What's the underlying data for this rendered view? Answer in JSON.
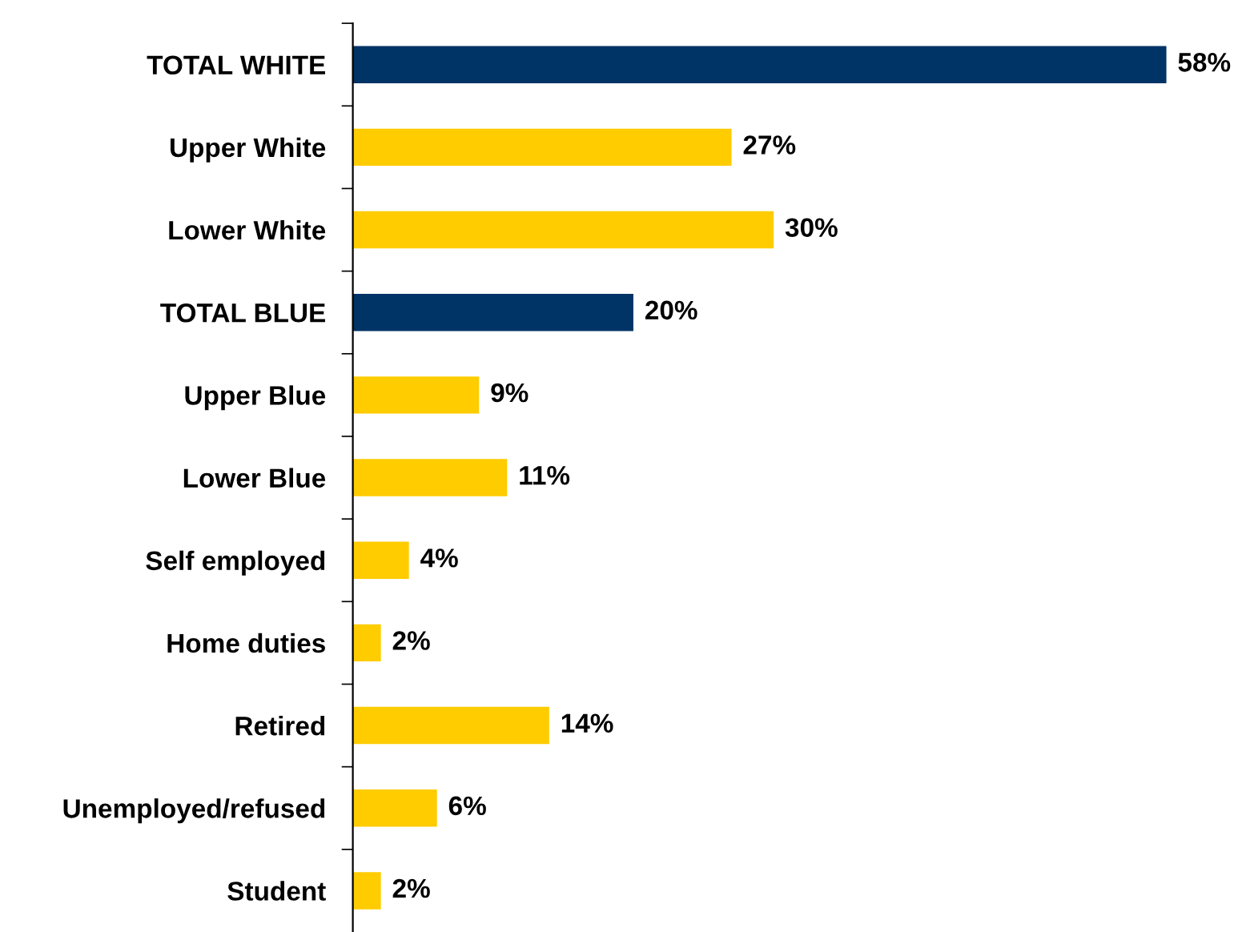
{
  "chart_data": {
    "type": "bar",
    "orientation": "horizontal",
    "categories": [
      "TOTAL WHITE",
      "Upper White",
      "Lower White",
      "TOTAL BLUE",
      "Upper Blue",
      "Lower Blue",
      "Self employed",
      "Home duties",
      "Retired",
      "Unemployed/refused",
      "Student"
    ],
    "values": [
      58,
      27,
      30,
      20,
      9,
      11,
      4,
      2,
      14,
      6,
      2
    ],
    "colors": [
      "#003366",
      "#ffcc00",
      "#ffcc00",
      "#003366",
      "#ffcc00",
      "#ffcc00",
      "#ffcc00",
      "#ffcc00",
      "#ffcc00",
      "#ffcc00",
      "#ffcc00"
    ],
    "value_labels": [
      "58%",
      "27%",
      "30%",
      "20%",
      "9%",
      "11%",
      "4%",
      "2%",
      "14%",
      "6%",
      "2%"
    ],
    "grid": false
  }
}
